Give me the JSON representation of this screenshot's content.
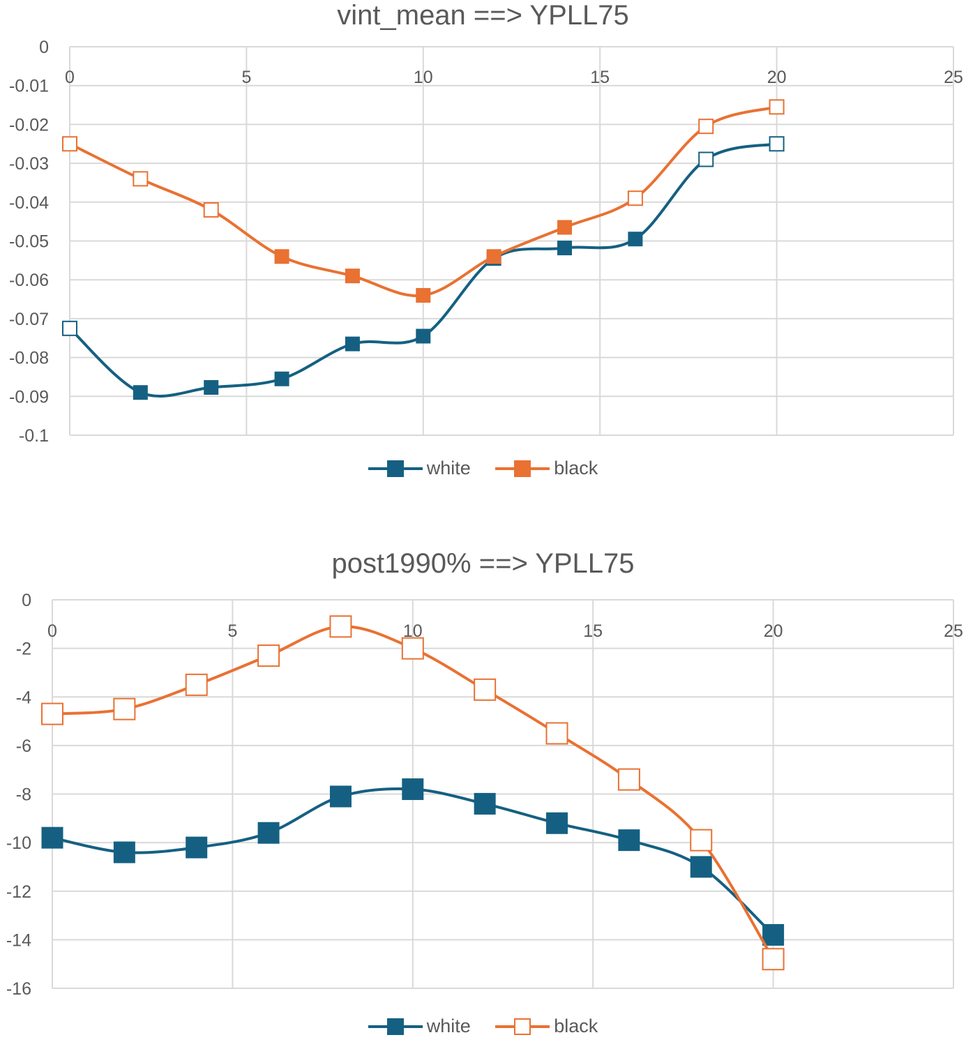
{
  "chart_data": [
    {
      "type": "line",
      "title": "vint_mean ==> YPLL75",
      "xlim": [
        0,
        25
      ],
      "ylim": [
        -0.1,
        0
      ],
      "x_ticks": [
        "0",
        "5",
        "10",
        "15",
        "20",
        "25"
      ],
      "y_ticks": [
        "0",
        "-0.01",
        "-0.02",
        "-0.03",
        "-0.04",
        "-0.05",
        "-0.06",
        "-0.07",
        "-0.08",
        "-0.09",
        "-0.1"
      ],
      "grid": true,
      "smooth": true,
      "legend_position": "bottom",
      "x": [
        0,
        2,
        4,
        6,
        8,
        10,
        12,
        14,
        16,
        18,
        20
      ],
      "series": [
        {
          "name": "white",
          "color": "#156082",
          "values": [
            -0.0725,
            -0.089,
            -0.0877,
            -0.0855,
            -0.0765,
            -0.0745,
            -0.0545,
            -0.0518,
            -0.0495,
            -0.029,
            -0.025
          ],
          "hollow": [
            true,
            false,
            false,
            false,
            false,
            false,
            false,
            false,
            false,
            true,
            true
          ],
          "legend_marker": "filled-square"
        },
        {
          "name": "black",
          "color": "#E97132",
          "values": [
            -0.025,
            -0.034,
            -0.042,
            -0.054,
            -0.059,
            -0.064,
            -0.054,
            -0.0465,
            -0.039,
            -0.0205,
            -0.0155
          ],
          "hollow": [
            true,
            true,
            true,
            false,
            false,
            false,
            false,
            false,
            true,
            true,
            true
          ],
          "legend_marker": "filled-square"
        }
      ]
    },
    {
      "type": "line",
      "title": "post1990% ==> YPLL75",
      "xlim": [
        0,
        25
      ],
      "ylim": [
        -16,
        0
      ],
      "x_ticks": [
        "0",
        "5",
        "10",
        "15",
        "20",
        "25"
      ],
      "y_ticks": [
        "0",
        "-2",
        "-4",
        "-6",
        "-8",
        "-10",
        "-12",
        "-14",
        "-16"
      ],
      "grid": true,
      "smooth": true,
      "legend_position": "bottom",
      "x": [
        0,
        2,
        4,
        6,
        8,
        10,
        12,
        14,
        16,
        18,
        20
      ],
      "series": [
        {
          "name": "white",
          "color": "#156082",
          "values": [
            -9.8,
            -10.4,
            -10.2,
            -9.6,
            -8.1,
            -7.8,
            -8.4,
            -9.2,
            -9.9,
            -11.0,
            -13.8
          ],
          "hollow": [
            false,
            false,
            false,
            false,
            false,
            false,
            false,
            false,
            false,
            false,
            false
          ],
          "legend_marker": "filled-square"
        },
        {
          "name": "black",
          "color": "#E97132",
          "values": [
            -4.7,
            -4.5,
            -3.5,
            -2.3,
            -1.1,
            -2.0,
            -3.7,
            -5.5,
            -7.4,
            -9.9,
            -14.8
          ],
          "hollow": [
            true,
            true,
            true,
            true,
            true,
            true,
            true,
            true,
            true,
            true,
            true
          ],
          "legend_marker": "hollow-square"
        }
      ]
    }
  ]
}
